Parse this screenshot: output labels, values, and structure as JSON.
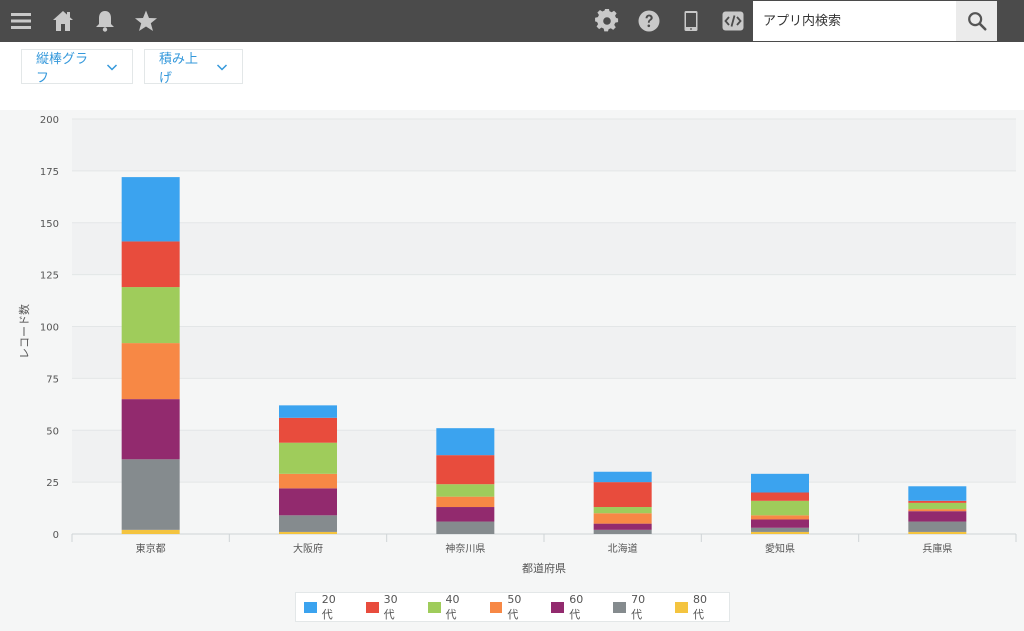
{
  "topbar": {
    "icons": [
      "menu-icon",
      "home-icon",
      "bell-icon",
      "star-icon",
      "gear-icon",
      "help-icon",
      "mobile-icon",
      "code-icon"
    ],
    "search": {
      "placeholder": "アプリ内検索",
      "value": ""
    }
  },
  "controls": {
    "chart_type_label": "縦棒グラフ",
    "stack_mode_label": "積み上げ"
  },
  "colors": {
    "20代": "#3ba3ef",
    "30代": "#e84c3d",
    "40代": "#9fcc5b",
    "50代": "#f78845",
    "60代": "#922a6e",
    "70代": "#858b8e",
    "80代": "#f4c43f"
  },
  "chart_data": {
    "type": "bar",
    "stacked": true,
    "xlabel": "都道府県",
    "ylabel": "レコード数",
    "ylim": [
      0,
      200
    ],
    "yticks": [
      0,
      25,
      50,
      75,
      100,
      125,
      150,
      175,
      200
    ],
    "categories": [
      "東京都",
      "大阪府",
      "神奈川県",
      "北海道",
      "愛知県",
      "兵庫県"
    ],
    "series": [
      {
        "name": "80 代",
        "key": "80代",
        "values": [
          2,
          1,
          0,
          0,
          1,
          1
        ]
      },
      {
        "name": "70 代",
        "key": "70代",
        "values": [
          34,
          8,
          6,
          2,
          2,
          5
        ]
      },
      {
        "name": "60 代",
        "key": "60代",
        "values": [
          29,
          13,
          7,
          3,
          4,
          5
        ]
      },
      {
        "name": "50 代",
        "key": "50代",
        "values": [
          27,
          7,
          5,
          5,
          2,
          1
        ]
      },
      {
        "name": "40 代",
        "key": "40代",
        "values": [
          27,
          15,
          6,
          3,
          7,
          3
        ]
      },
      {
        "name": "30 代",
        "key": "30代",
        "values": [
          22,
          12,
          14,
          12,
          4,
          1
        ]
      },
      {
        "name": "20 代",
        "key": "20代",
        "values": [
          31,
          6,
          13,
          5,
          9,
          7
        ]
      }
    ],
    "legend_order": [
      "20 代",
      "30 代",
      "40 代",
      "50 代",
      "60 代",
      "70 代",
      "80 代"
    ],
    "legend_position": "bottom",
    "grid": true
  }
}
